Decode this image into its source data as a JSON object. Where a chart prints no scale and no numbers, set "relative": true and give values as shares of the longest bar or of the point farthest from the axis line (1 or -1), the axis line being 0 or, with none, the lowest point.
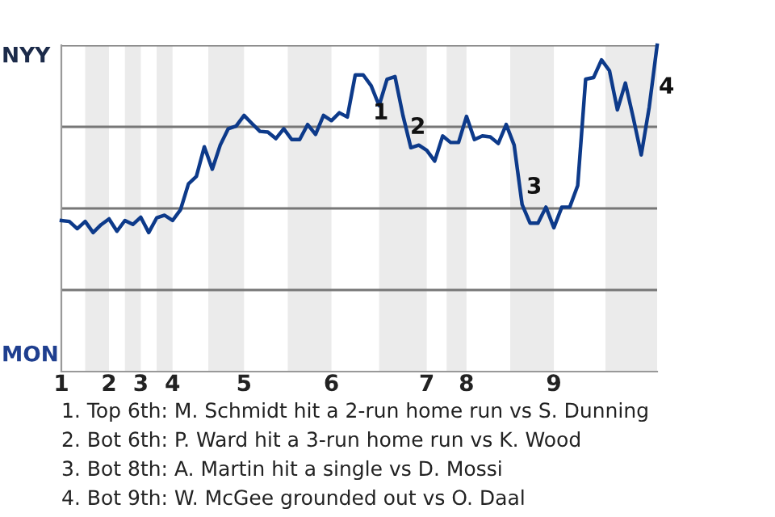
{
  "chart_data": {
    "type": "line",
    "relative": true,
    "grid": "y",
    "marker": "none",
    "line_style": "solid",
    "categories": [
      "1",
      null,
      null,
      null,
      null,
      null,
      "2",
      null,
      null,
      null,
      "3",
      null,
      null,
      null,
      "4",
      null,
      null,
      null,
      null,
      null,
      null,
      null,
      null,
      "5",
      null,
      null,
      null,
      null,
      null,
      null,
      null,
      null,
      null,
      null,
      "6",
      null,
      null,
      null,
      null,
      null,
      null,
      null,
      null,
      null,
      null,
      null,
      "7",
      null,
      null,
      null,
      null,
      "8",
      null,
      null,
      null,
      null,
      null,
      null,
      null,
      null,
      null,
      null,
      "9",
      null,
      null,
      null,
      null,
      null,
      null,
      null,
      null,
      null,
      null,
      null,
      null,
      null
    ],
    "series": [
      {
        "color": "#0d3a8a",
        "values": [
          0.463,
          0.46,
          0.438,
          0.46,
          0.426,
          0.45,
          0.468,
          0.43,
          0.463,
          0.451,
          0.473,
          0.426,
          0.471,
          0.479,
          0.463,
          0.496,
          0.575,
          0.598,
          0.689,
          0.62,
          0.694,
          0.744,
          0.752,
          0.785,
          0.76,
          0.736,
          0.734,
          0.714,
          0.744,
          0.711,
          0.711,
          0.757,
          0.727,
          0.785,
          0.769,
          0.793,
          0.78,
          0.909,
          0.909,
          0.876,
          0.815,
          0.896,
          0.904,
          0.785,
          0.686,
          0.694,
          0.678,
          0.645,
          0.722,
          0.702,
          0.702,
          0.782,
          0.711,
          0.722,
          0.719,
          0.699,
          0.757,
          0.694,
          0.512,
          0.455,
          0.455,
          0.504,
          0.441,
          0.504,
          0.504,
          0.57,
          0.896,
          0.901,
          0.955,
          0.922,
          0.802,
          0.884,
          0.777,
          0.664,
          0.81,
          1.0
        ]
      }
    ],
    "annotations": [
      "NYY",
      "MON",
      "1",
      "2",
      "3",
      "4",
      "1. Top 6th: M. Schmidt hit a 2-run home run vs S. Dunning",
      "2. Bot 6th: P. Ward hit a 3-run home run vs K. Wood",
      "3. Bot 8th: A. Martin hit a single vs D. Mossi",
      "4. Bot 9th: W. McGee grounded out vs O. Daal"
    ]
  }
}
